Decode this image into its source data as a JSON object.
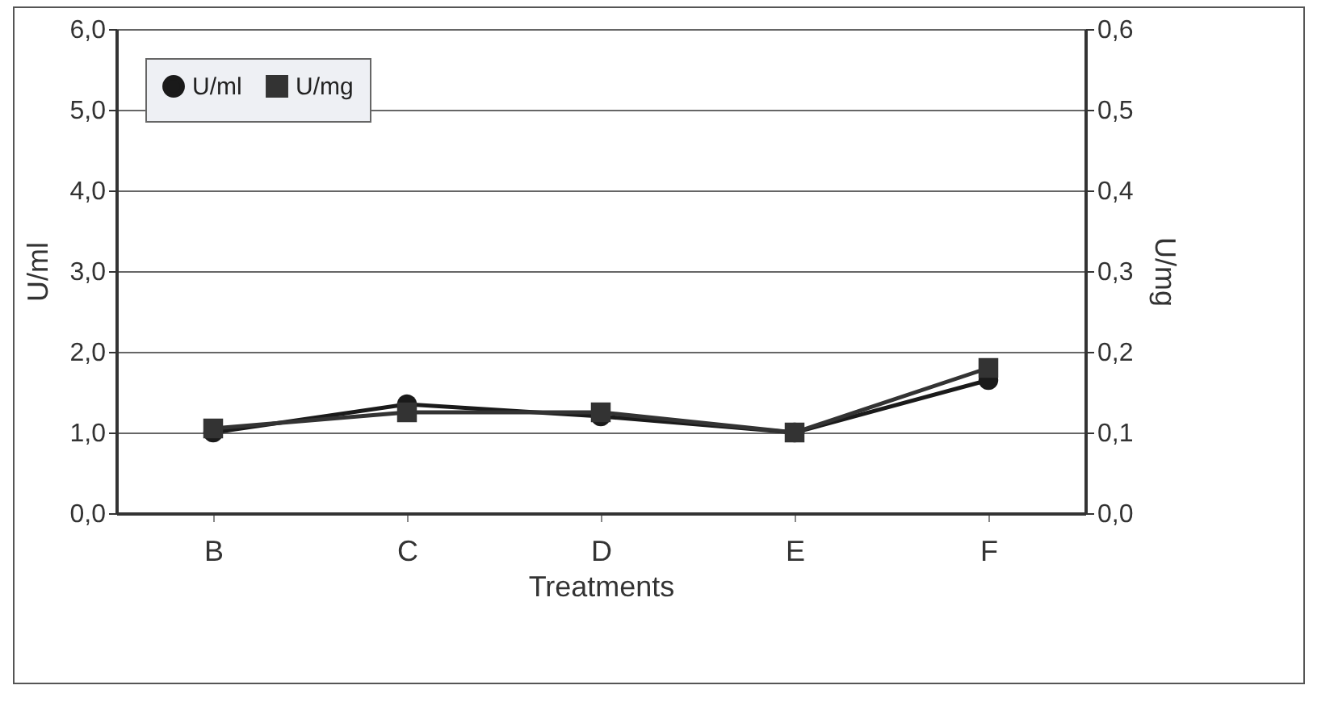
{
  "chart_data": {
    "type": "line",
    "xlabel": "Treatments",
    "ylabel": "U/ml",
    "y2label": "U/mg",
    "categories": [
      "B",
      "C",
      "D",
      "E",
      "F"
    ],
    "series": [
      {
        "name": "U/ml",
        "color": "#1a1a1a",
        "marker": "circle",
        "values": [
          1.0,
          1.35,
          1.2,
          1.0,
          1.65
        ]
      },
      {
        "name": "U/mg",
        "color": "#333333",
        "marker": "square",
        "axis": "y2",
        "values": [
          0.105,
          0.125,
          0.125,
          0.1,
          0.18
        ]
      }
    ],
    "ylim": [
      0,
      6
    ],
    "yticks": [
      {
        "value": 0,
        "label": "0,0"
      },
      {
        "value": 1,
        "label": "1,0"
      },
      {
        "value": 2,
        "label": "2,0"
      },
      {
        "value": 3,
        "label": "3,0"
      },
      {
        "value": 4,
        "label": "4,0"
      },
      {
        "value": 5,
        "label": "5,0"
      },
      {
        "value": 6,
        "label": "6,0"
      }
    ],
    "y2lim": [
      0,
      0.6
    ],
    "y2ticks": [
      {
        "value": 0,
        "label": "0,0"
      },
      {
        "value": 0.1,
        "label": "0,1"
      },
      {
        "value": 0.2,
        "label": "0,2"
      },
      {
        "value": 0.3,
        "label": "0,3"
      },
      {
        "value": 0.4,
        "label": "0,4"
      },
      {
        "value": 0.5,
        "label": "0,5"
      },
      {
        "value": 0.6,
        "label": "0,6"
      }
    ],
    "grid": "y",
    "legend": "top left"
  }
}
